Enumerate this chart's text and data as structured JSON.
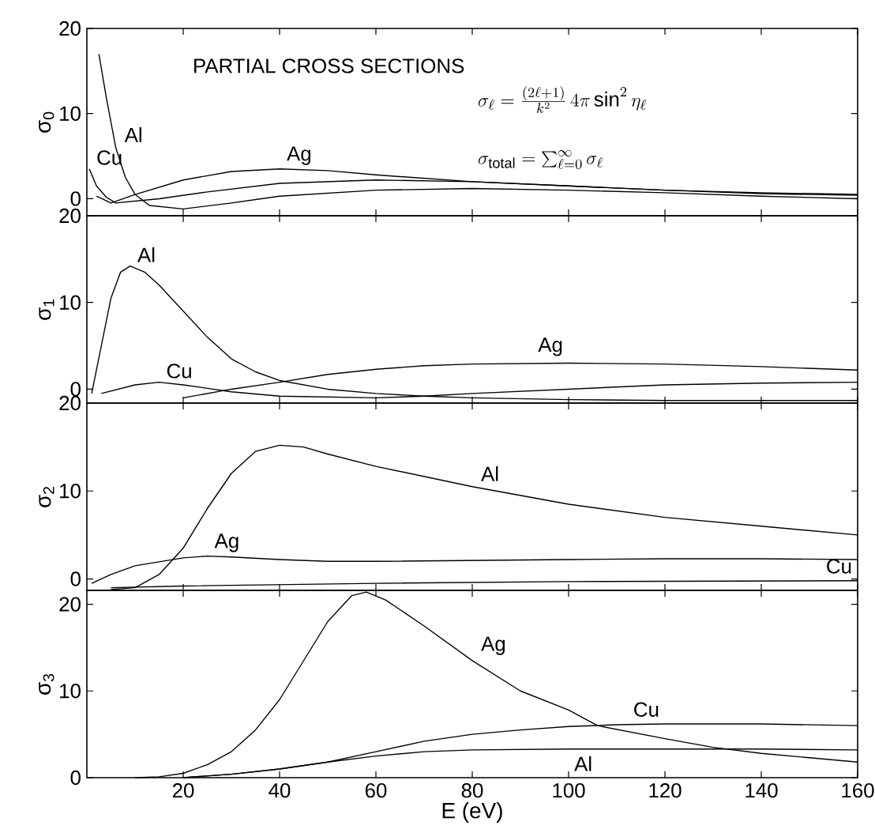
{
  "chart_data": [
    {
      "type": "line",
      "title": "PARTIAL CROSS SECTIONS",
      "ylabel": "σ$_{0}$",
      "annotations": [
        "\\sigma_\\ell=\\frac{(2\\ell+1)}{k^2}\\,4\\pi\\sin^2\\eta_\\ell",
        "\\sigma_{\\mathrm{total}}=\\sum_{\\ell=0}^{\\infty}\\sigma_\\ell"
      ],
      "xlim": [
        0,
        160
      ],
      "ylim": [
        -2,
        20
      ],
      "xticks": [
        20,
        40,
        60,
        80,
        100,
        120,
        140,
        160
      ],
      "yticks": [
        0,
        10,
        20
      ],
      "tick_labels": "y",
      "series": [
        {
          "name": "Al",
          "color": "#000000",
          "x": [
            2.5,
            4,
            6,
            8,
            10,
            13,
            20,
            30,
            40,
            60,
            80,
            100,
            120,
            140,
            160
          ],
          "values": [
            17,
            12,
            6,
            2.5,
            0.5,
            -0.8,
            -1.2,
            -0.5,
            0.3,
            1,
            1.2,
            1,
            0.7,
            0.3,
            0
          ]
        },
        {
          "name": "Cu",
          "color": "#000000",
          "x": [
            0.5,
            2,
            4,
            6,
            15,
            25,
            40,
            60,
            80,
            100,
            120,
            140,
            160
          ],
          "values": [
            3.5,
            1.5,
            0.2,
            -0.5,
            0,
            0.8,
            1.8,
            2.2,
            2,
            1.5,
            1,
            0.6,
            0.4
          ]
        },
        {
          "name": "Ag",
          "color": "#000000",
          "x": [
            2,
            5,
            10,
            20,
            30,
            40,
            50,
            60,
            80,
            100,
            120,
            140,
            160
          ],
          "values": [
            0.3,
            -0.5,
            0.5,
            2.2,
            3.2,
            3.5,
            3.3,
            2.8,
            2,
            1.5,
            1,
            0.7,
            0.5
          ]
        }
      ]
    },
    {
      "type": "line",
      "ylabel": "σ$_{1}$",
      "xlim": [
        0,
        160
      ],
      "ylim": [
        -1.6,
        20
      ],
      "xticks": [
        20,
        40,
        60,
        80,
        100,
        120,
        140,
        160
      ],
      "yticks": [
        0,
        10,
        20
      ],
      "tick_labels": "y",
      "series": [
        {
          "name": "Al",
          "color": "#000000",
          "x": [
            1,
            3,
            5,
            7,
            9,
            12,
            15,
            20,
            25,
            30,
            35,
            40,
            50,
            60,
            70,
            80,
            100,
            120,
            140,
            160
          ],
          "values": [
            -0.5,
            5,
            10.5,
            13.5,
            14.2,
            13.5,
            12,
            9,
            6,
            3.5,
            2,
            1,
            0,
            -0.5,
            -0.8,
            -1,
            -1.2,
            -1.3,
            -1.3,
            -1.3
          ]
        },
        {
          "name": "Cu",
          "color": "#000000",
          "x": [
            3,
            10,
            15,
            20,
            30,
            40,
            60,
            70,
            80,
            100,
            120,
            140,
            160
          ],
          "values": [
            -0.5,
            0.5,
            0.8,
            0.5,
            -0.3,
            -0.8,
            -1,
            -0.8,
            -0.5,
            0,
            0.5,
            0.7,
            0.8
          ]
        },
        {
          "name": "Ag",
          "color": "#000000",
          "x": [
            20,
            30,
            40,
            50,
            60,
            70,
            80,
            100,
            120,
            140,
            160
          ],
          "values": [
            -1,
            0,
            0.8,
            1.7,
            2.3,
            2.7,
            2.9,
            3,
            2.9,
            2.6,
            2.2
          ]
        }
      ]
    },
    {
      "type": "line",
      "ylabel": "σ$_{2}$",
      "xlim": [
        0,
        160
      ],
      "ylim": [
        -1.3,
        20
      ],
      "xticks": [
        20,
        40,
        60,
        80,
        100,
        120,
        140,
        160
      ],
      "yticks": [
        0,
        10,
        20
      ],
      "tick_labels": "y",
      "series": [
        {
          "name": "Al",
          "color": "#000000",
          "x": [
            5,
            10,
            15,
            20,
            25,
            30,
            35,
            40,
            45,
            50,
            60,
            80,
            100,
            120,
            140,
            160
          ],
          "values": [
            -1.2,
            -1,
            0.5,
            3.5,
            8,
            12,
            14.5,
            15.2,
            15,
            14.2,
            12.8,
            10.5,
            8.5,
            7,
            6,
            5
          ]
        },
        {
          "name": "Cu",
          "color": "#000000",
          "x": [
            5,
            20,
            60,
            100,
            160
          ],
          "values": [
            -1,
            -0.8,
            -0.5,
            -0.3,
            -0.2
          ]
        },
        {
          "name": "Ag",
          "color": "#000000",
          "x": [
            1,
            5,
            10,
            20,
            25,
            30,
            40,
            50,
            60,
            80,
            100,
            120,
            140,
            160
          ],
          "values": [
            -0.5,
            0.5,
            1.5,
            2.4,
            2.6,
            2.5,
            2.2,
            2,
            2,
            2.1,
            2.2,
            2.3,
            2.3,
            2.2
          ]
        }
      ]
    },
    {
      "type": "line",
      "ylabel": "σ$_{3}$",
      "xlabel": "E (eV)",
      "xlim": [
        0,
        160
      ],
      "ylim": [
        0,
        21.6
      ],
      "xticks": [
        20,
        40,
        60,
        80,
        100,
        120,
        140,
        160
      ],
      "yticks": [
        0,
        10,
        20
      ],
      "series": [
        {
          "name": "Ag",
          "color": "#000000",
          "x": [
            10,
            15,
            20,
            25,
            30,
            35,
            40,
            45,
            50,
            55,
            58,
            62,
            70,
            80,
            90,
            100,
            106,
            120,
            130,
            140,
            150,
            160
          ],
          "values": [
            0,
            0.1,
            0.5,
            1.5,
            3,
            5.5,
            9,
            13.5,
            18,
            21,
            21.4,
            20.5,
            17.5,
            13.5,
            10,
            7.8,
            6,
            4.5,
            3.5,
            2.8,
            2.3,
            1.8
          ]
        },
        {
          "name": "Cu",
          "color": "#000000",
          "x": [
            20,
            30,
            40,
            50,
            60,
            70,
            80,
            90,
            100,
            110,
            120,
            140,
            160
          ],
          "values": [
            0,
            0.4,
            1,
            1.8,
            3,
            4.2,
            5,
            5.5,
            5.9,
            6.1,
            6.2,
            6.2,
            6
          ]
        },
        {
          "name": "Al",
          "color": "#000000",
          "x": [
            20,
            30,
            40,
            50,
            60,
            70,
            80,
            100,
            120,
            140,
            160
          ],
          "values": [
            0,
            0.4,
            1,
            1.8,
            2.5,
            3,
            3.2,
            3.3,
            3.3,
            3.3,
            3.2
          ]
        }
      ]
    }
  ]
}
